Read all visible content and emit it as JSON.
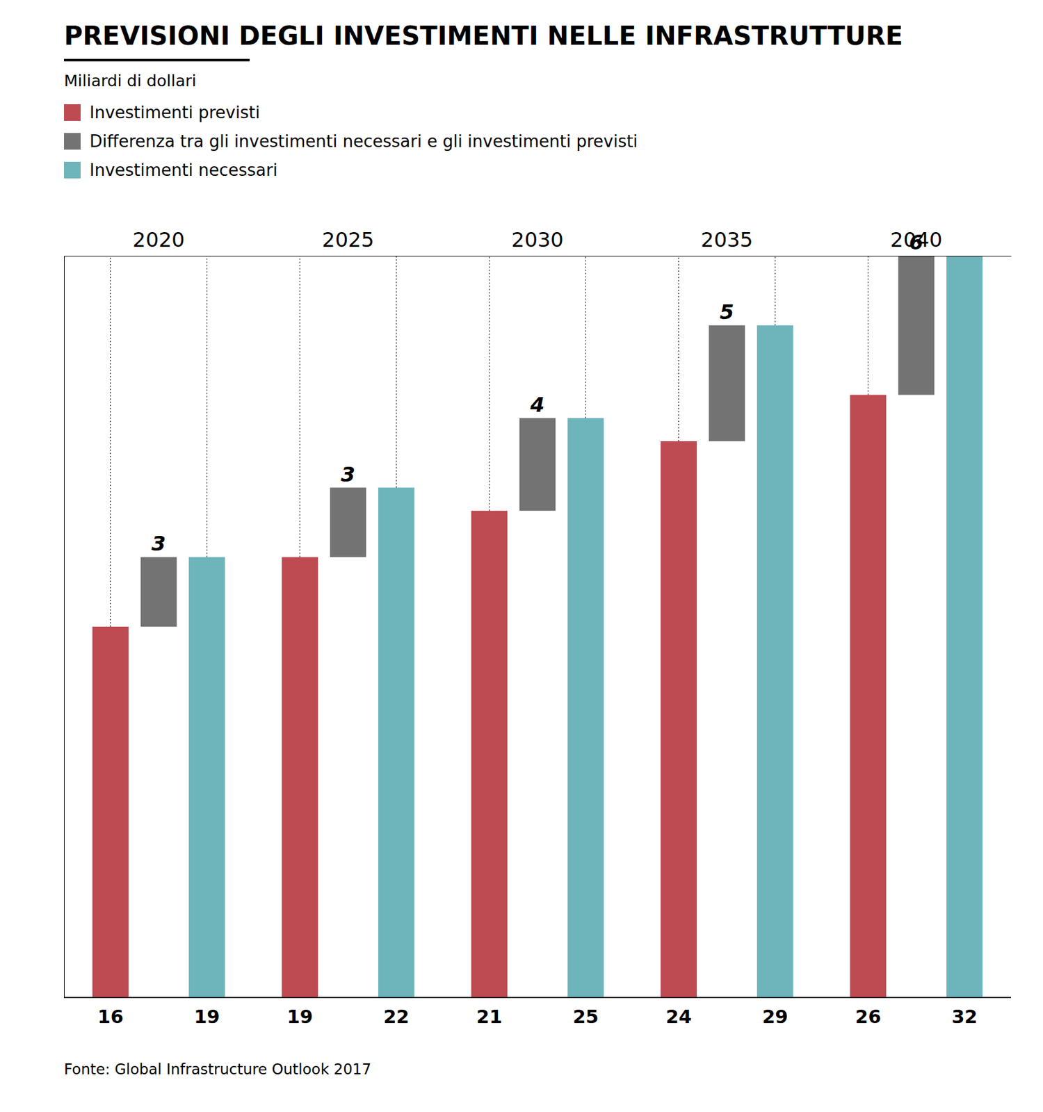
{
  "chart_data": {
    "type": "bar",
    "title": "PREVISIONI DEGLI INVESTIMENTI NELLE INFRASTRUTTURE",
    "subtitle": "Miliardi di dollari",
    "categories": [
      "2020",
      "2025",
      "2030",
      "2035",
      "2040"
    ],
    "series": [
      {
        "name": "Investimenti previsti",
        "color": "#be4a52",
        "values": [
          16,
          19,
          21,
          24,
          26
        ]
      },
      {
        "name": "Differenza tra gli investimenti necessari e gli investimenti previsti",
        "color": "#737373",
        "values": [
          3,
          3,
          4,
          5,
          6
        ]
      },
      {
        "name": "Investimenti necessari",
        "color": "#6eb5bb",
        "values": [
          19,
          22,
          25,
          29,
          32
        ]
      }
    ],
    "ylim": [
      0,
      32
    ],
    "tick_labels": "x",
    "data_labels": true,
    "annotations": [
      "Fonte: Global Infrastructure Outlook 2017"
    ]
  }
}
